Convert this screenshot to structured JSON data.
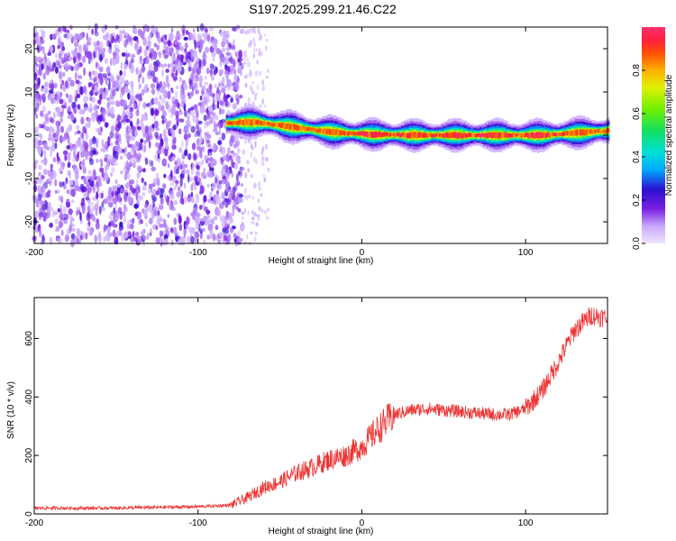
{
  "title": "S197.2025.299.21.46.C22",
  "chart_data": [
    {
      "type": "heatmap",
      "name": "spectrogram",
      "xlabel": "Height of straight line (km)",
      "ylabel": "Frequency (Hz)",
      "xlim": [
        -200,
        150
      ],
      "ylim": [
        -25,
        25
      ],
      "xticks": [
        -200,
        -100,
        0,
        100
      ],
      "yticks": [
        -20,
        -10,
        0,
        10,
        20
      ],
      "noise_region_x": [
        -200,
        -73
      ],
      "sparse_noise_x": [
        -73,
        -57
      ],
      "signal_ridge": {
        "x": [
          -83,
          -75,
          -65,
          -55,
          -45,
          -35,
          -25,
          -15,
          -5,
          5,
          15,
          30,
          50,
          70,
          90,
          110,
          130,
          150
        ],
        "freq": [
          2.8,
          3.0,
          3.0,
          2.5,
          2.0,
          1.5,
          1.0,
          0.6,
          0.4,
          0.2,
          0.1,
          0.0,
          0.0,
          0.0,
          0.0,
          0.0,
          0.5,
          1.0
        ]
      },
      "colorbar": {
        "label": "Normalized spectral amplitude",
        "range": [
          0,
          1
        ],
        "ticks": [
          0.0,
          0.2,
          0.4,
          0.6,
          0.8
        ]
      }
    },
    {
      "type": "line",
      "name": "snr",
      "xlabel": "Height of straight line (km)",
      "ylabel": "SNR (10 * v/v)",
      "xlim": [
        -200,
        150
      ],
      "ylim": [
        0,
        740
      ],
      "xticks": [
        -200,
        -100,
        0,
        100
      ],
      "yticks": [
        0,
        200,
        400,
        600
      ],
      "color": "#ee3333",
      "series": [
        {
          "name": "SNR",
          "x": [
            -200,
            -150,
            -100,
            -80,
            -70,
            -60,
            -50,
            -40,
            -30,
            -20,
            -10,
            0,
            10,
            20,
            30,
            40,
            50,
            60,
            70,
            80,
            90,
            100,
            110,
            120,
            130,
            140,
            150
          ],
          "y": [
            20,
            20,
            25,
            30,
            55,
            90,
            110,
            140,
            160,
            185,
            200,
            230,
            290,
            340,
            355,
            360,
            355,
            350,
            345,
            340,
            340,
            360,
            420,
            520,
            630,
            680,
            670
          ]
        }
      ]
    }
  ]
}
